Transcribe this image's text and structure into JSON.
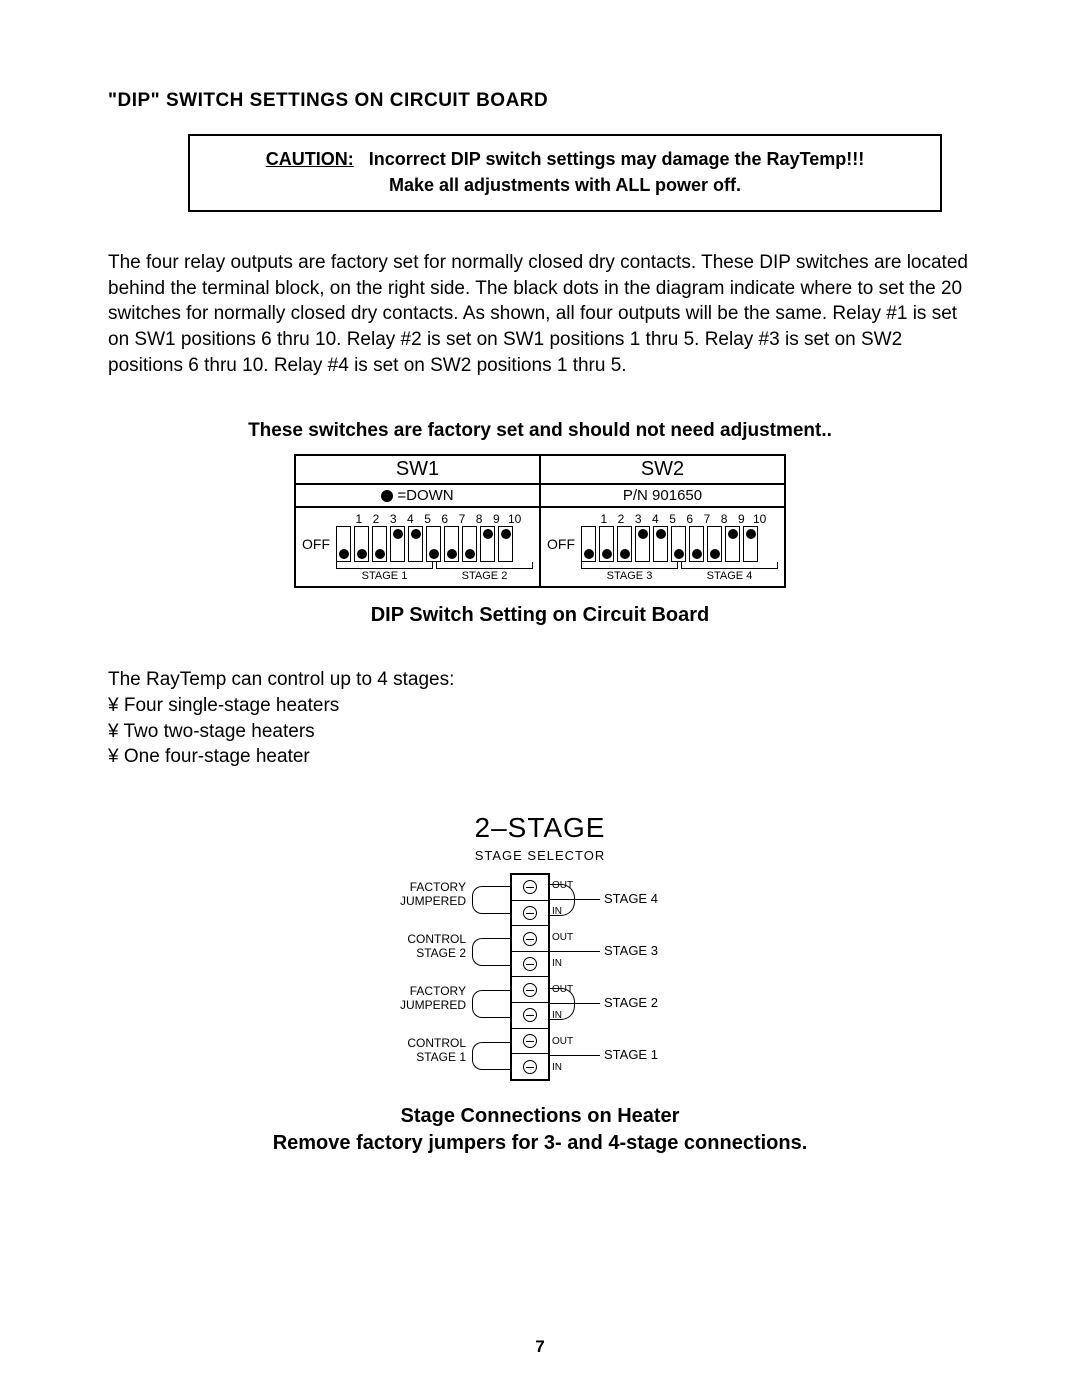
{
  "section_title": "\"DIP\" SWITCH SETTINGS ON CIRCUIT BOARD",
  "caution": {
    "label": "CAUTION:",
    "line1": "Incorrect DIP switch settings may damage the RayTemp!!!",
    "line2": "Make all adjustments with ALL power off."
  },
  "paragraph": "The four relay outputs are factory set for normally closed dry contacts.  These DIP switches are located behind the terminal block, on the right side.  The black dots in the diagram indicate where to set the 20 switches for normally closed dry contacts. As shown, all four outputs will be the same.  Relay #1 is set on SW1 positions 6 thru 10. Relay #2 is set on SW1 positions 1 thru 5. Relay #3 is set on SW2 positions 6 thru 10. Relay #4 is set on SW2 positions 1 thru 5.",
  "factory_note": "These switches are factory set and should not need adjustment.",
  "dip": {
    "blocks": [
      {
        "title": "SW1",
        "legend_prefix": "",
        "legend_text": "=DOWN",
        "show_legend_dot": true,
        "numbers": [
          "1",
          "2",
          "3",
          "4",
          "5",
          "6",
          "7",
          "8",
          "9",
          "10"
        ],
        "off_label": "OFF",
        "positions": [
          "down",
          "down",
          "down",
          "up",
          "up",
          "down",
          "down",
          "down",
          "up",
          "up"
        ],
        "brackets": [
          "STAGE 1",
          "STAGE 2"
        ]
      },
      {
        "title": "SW2",
        "legend_prefix": "",
        "legend_text": "P/N 901650",
        "show_legend_dot": false,
        "numbers": [
          "1",
          "2",
          "3",
          "4",
          "5",
          "6",
          "7",
          "8",
          "9",
          "10"
        ],
        "off_label": "OFF",
        "positions": [
          "down",
          "down",
          "down",
          "up",
          "up",
          "down",
          "down",
          "down",
          "up",
          "up"
        ],
        "brackets": [
          "STAGE 3",
          "STAGE 4"
        ]
      }
    ],
    "caption": "DIP Switch Setting on Circuit Board"
  },
  "stages_intro": {
    "lead": "The RayTemp can control up to 4 stages:",
    "bullets": [
      "¥ Four single-stage heaters",
      "¥ Two two-stage heaters",
      "¥ One four-stage heater"
    ]
  },
  "stage_diagram": {
    "title": "2–STAGE",
    "subtitle": "STAGE SELECTOR",
    "rows": [
      {
        "left_top": "FACTORY",
        "left_bot": "JUMPERED",
        "out": "OUT",
        "in": "IN",
        "right": "STAGE 4",
        "jumpered": true
      },
      {
        "left_top": "CONTROL",
        "left_bot": "STAGE 2",
        "out": "OUT",
        "in": "IN",
        "right": "STAGE 3",
        "jumpered": false
      },
      {
        "left_top": "FACTORY",
        "left_bot": "JUMPERED",
        "out": "OUT",
        "in": "IN",
        "right": "STAGE 2",
        "jumpered": true
      },
      {
        "left_top": "CONTROL",
        "left_bot": "STAGE 1",
        "out": "OUT",
        "in": "IN",
        "right": "STAGE 1",
        "jumpered": false
      }
    ],
    "caption1": "Stage Connections on Heater",
    "caption2": "Remove factory jumpers for 3- and 4-stage connections."
  },
  "page_number": "7",
  "colors": {
    "text": "#000000",
    "background": "#ffffff",
    "border": "#000000"
  }
}
